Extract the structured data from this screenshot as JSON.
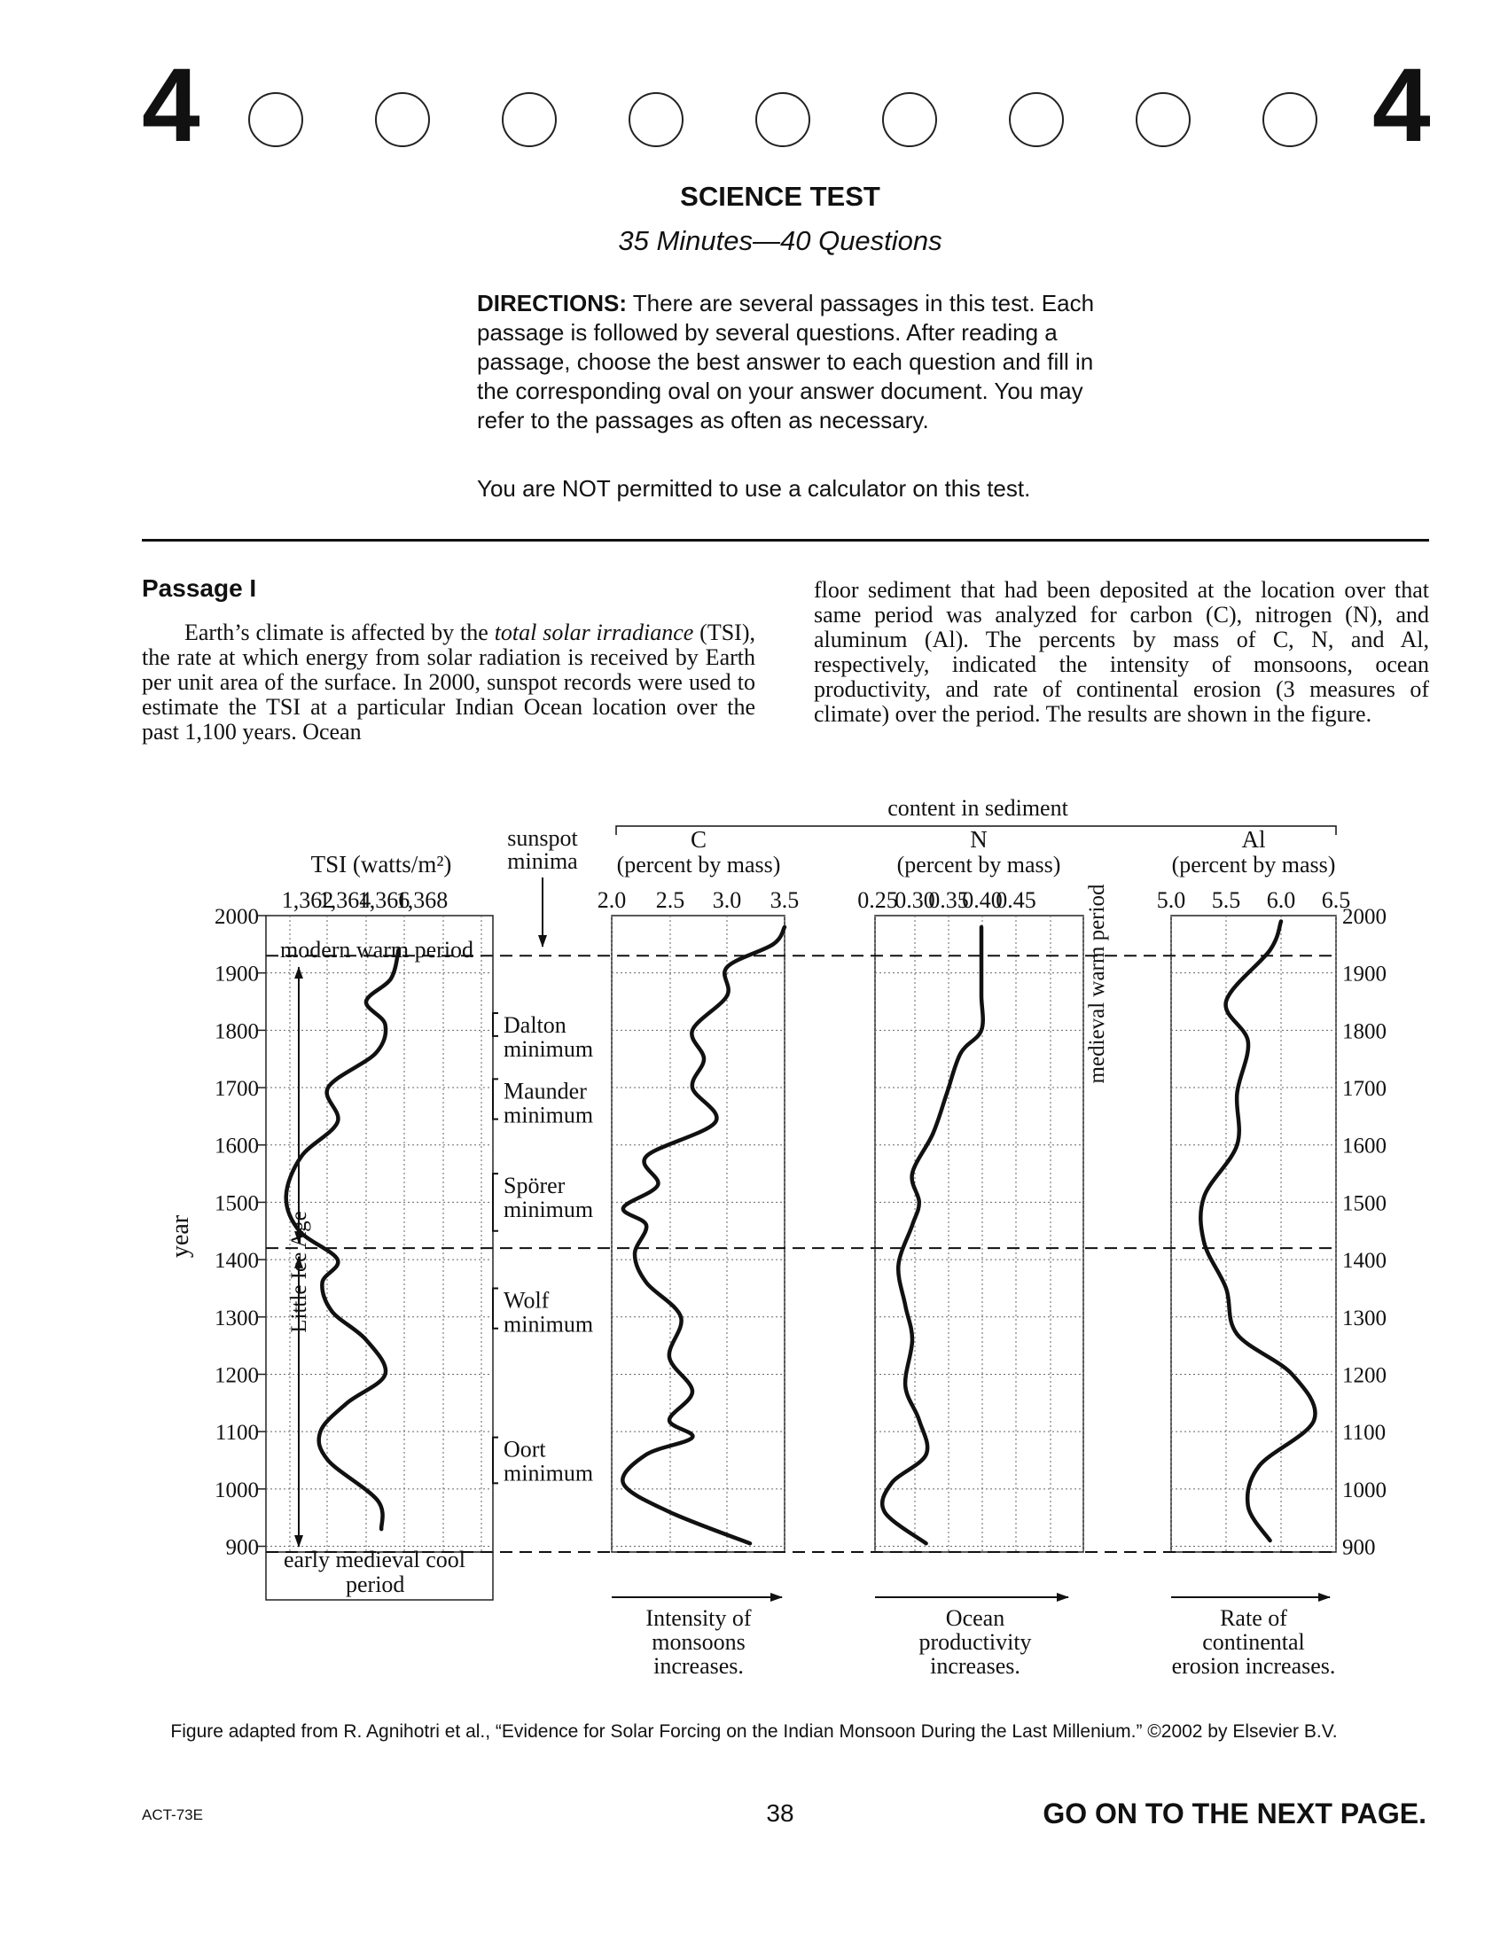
{
  "header": {
    "section_number": "4",
    "oval_count": 9,
    "title": "SCIENCE TEST",
    "subtitle": "35 Minutes—40 Questions",
    "directions_label": "DIRECTIONS:",
    "directions_text": "There are several passages in this test. Each passage is followed by several questions. After reading a passage, choose the best answer to each question and fill in the corresponding oval on your answer document. You may refer to the passages as often as necessary.",
    "calculator_note": "You are NOT permitted to use a calculator on this test."
  },
  "passage": {
    "heading": "Passage I",
    "left_before_term": "Earth’s climate is affected by the ",
    "term": "total solar irradiance",
    "left_after_term": " (TSI), the rate at which energy from solar radiation is received by Earth per unit area of the surface. In 2000, sunspot records were used to estimate the TSI at a particular Indian Ocean location over the past 1,100 years. Ocean",
    "right": "floor sediment that had been deposited at the location over that same period was analyzed for carbon (C), nitrogen (N), and aluminum (Al). The percents by mass of C, N, and Al, respectively, indicated the intensity of monsoons, ocean productivity, and rate of continental erosion (3 measures of climate) over the period. The results are shown in the figure."
  },
  "figure": {
    "y_axis_label": "year",
    "content_header": "content in sediment",
    "sunspot_header": [
      "sunspot",
      "minima"
    ],
    "year_ticks": [
      "2000",
      "1900",
      "1800",
      "1700",
      "1600",
      "1500",
      "1400",
      "1300",
      "1200",
      "1100",
      "1000",
      "900"
    ],
    "periods": {
      "modern": "modern warm period",
      "little_ice_age": "Little Ice Age",
      "medieval_warm": "medieval warm period",
      "early_cool": [
        "early medieval cool",
        "period"
      ]
    },
    "minima": [
      {
        "name": "Dalton",
        "label": "minimum"
      },
      {
        "name": "Maunder",
        "label": "minimum"
      },
      {
        "name": "Spörer",
        "label": "minimum"
      },
      {
        "name": "Wolf",
        "label": "minimum"
      },
      {
        "name": "Oort",
        "label": "minimum"
      }
    ],
    "arrow_captions": {
      "c": [
        "Intensity of",
        "monsoons",
        "increases."
      ],
      "n": [
        "Ocean",
        "productivity",
        "increases."
      ],
      "al": [
        "Rate of",
        "continental",
        "erosion increases."
      ]
    }
  },
  "chart_data": [
    {
      "type": "line",
      "title": "TSI (watts/m²)",
      "xlabel": "TSI (watts/m²)",
      "ylabel": "year",
      "x_ticks": [
        "1,362",
        "1,364",
        "1,366",
        "1,368"
      ],
      "xlim": [
        1361,
        1369
      ],
      "ylim": [
        890,
        2000
      ],
      "grid": true,
      "series": [
        {
          "points": [
            [
              1366.8,
              930
            ],
            [
              1366.6,
              980
            ],
            [
              1364.0,
              1050
            ],
            [
              1363.6,
              1100
            ],
            [
              1365.0,
              1150
            ],
            [
              1367.0,
              1200
            ],
            [
              1366.0,
              1260
            ],
            [
              1364.2,
              1310
            ],
            [
              1363.7,
              1360
            ],
            [
              1364.5,
              1400
            ],
            [
              1362.5,
              1450
            ],
            [
              1361.8,
              1510
            ],
            [
              1362.6,
              1580
            ],
            [
              1364.5,
              1640
            ],
            [
              1364.0,
              1700
            ],
            [
              1366.5,
              1760
            ],
            [
              1367.0,
              1810
            ],
            [
              1366.0,
              1850
            ],
            [
              1367.3,
              1890
            ],
            [
              1367.7,
              1940
            ]
          ]
        }
      ]
    },
    {
      "type": "line",
      "title": "C (percent by mass)",
      "xlabel": "C (percent by mass)",
      "ylabel": "year",
      "x_ticks": [
        "2.0",
        "2.5",
        "3.0",
        "3.5"
      ],
      "xlim": [
        2.0,
        3.5
      ],
      "ylim": [
        890,
        2000
      ],
      "grid": true,
      "series": [
        {
          "points": [
            [
              3.2,
              905
            ],
            [
              2.5,
              960
            ],
            [
              2.1,
              1010
            ],
            [
              2.3,
              1060
            ],
            [
              2.7,
              1090
            ],
            [
              2.5,
              1120
            ],
            [
              2.7,
              1170
            ],
            [
              2.5,
              1230
            ],
            [
              2.6,
              1300
            ],
            [
              2.3,
              1360
            ],
            [
              2.2,
              1410
            ],
            [
              2.3,
              1460
            ],
            [
              2.1,
              1490
            ],
            [
              2.4,
              1530
            ],
            [
              2.3,
              1580
            ],
            [
              2.9,
              1640
            ],
            [
              2.7,
              1700
            ],
            [
              2.8,
              1750
            ],
            [
              2.7,
              1800
            ],
            [
              3.0,
              1860
            ],
            [
              3.0,
              1910
            ],
            [
              3.4,
              1950
            ],
            [
              3.5,
              1980
            ]
          ]
        }
      ]
    },
    {
      "type": "line",
      "title": "N (percent by mass)",
      "xlabel": "N (percent by mass)",
      "ylabel": "year",
      "x_ticks": [
        "0.25",
        "0.30",
        "0.35",
        "0.40",
        "0.45"
      ],
      "xlim": [
        0.25,
        0.45
      ],
      "ylim": [
        890,
        2000
      ],
      "grid": true,
      "series": [
        {
          "points": [
            [
              0.32,
              905
            ],
            [
              0.26,
              960
            ],
            [
              0.27,
              1010
            ],
            [
              0.32,
              1060
            ],
            [
              0.31,
              1120
            ],
            [
              0.29,
              1180
            ],
            [
              0.3,
              1260
            ],
            [
              0.29,
              1320
            ],
            [
              0.28,
              1390
            ],
            [
              0.3,
              1460
            ],
            [
              0.31,
              1500
            ],
            [
              0.3,
              1550
            ],
            [
              0.33,
              1620
            ],
            [
              0.35,
              1690
            ],
            [
              0.37,
              1760
            ],
            [
              0.4,
              1800
            ],
            [
              0.4,
              1860
            ],
            [
              0.4,
              1920
            ],
            [
              0.4,
              1980
            ]
          ]
        }
      ]
    },
    {
      "type": "line",
      "title": "Al (percent by mass)",
      "xlabel": "Al (percent by mass)",
      "ylabel": "year",
      "x_ticks": [
        "5.0",
        "5.5",
        "6.0",
        "6.5"
      ],
      "xlim": [
        5.0,
        6.5
      ],
      "ylim": [
        890,
        2000
      ],
      "grid": true,
      "series": [
        {
          "points": [
            [
              5.9,
              910
            ],
            [
              5.7,
              970
            ],
            [
              5.8,
              1040
            ],
            [
              6.3,
              1120
            ],
            [
              6.1,
              1200
            ],
            [
              5.6,
              1270
            ],
            [
              5.5,
              1350
            ],
            [
              5.3,
              1430
            ],
            [
              5.3,
              1510
            ],
            [
              5.6,
              1600
            ],
            [
              5.6,
              1690
            ],
            [
              5.7,
              1780
            ],
            [
              5.5,
              1850
            ],
            [
              5.9,
              1940
            ],
            [
              6.0,
              1990
            ]
          ]
        }
      ]
    }
  ],
  "caption": "Figure adapted from R. Agnihotri et al., “Evidence for Solar Forcing on the Indian Monsoon During the Last Millenium.” ©2002 by Elsevier B.V.",
  "footer": {
    "code": "ACT-73E",
    "page": "38",
    "next": "GO ON TO THE NEXT PAGE."
  }
}
